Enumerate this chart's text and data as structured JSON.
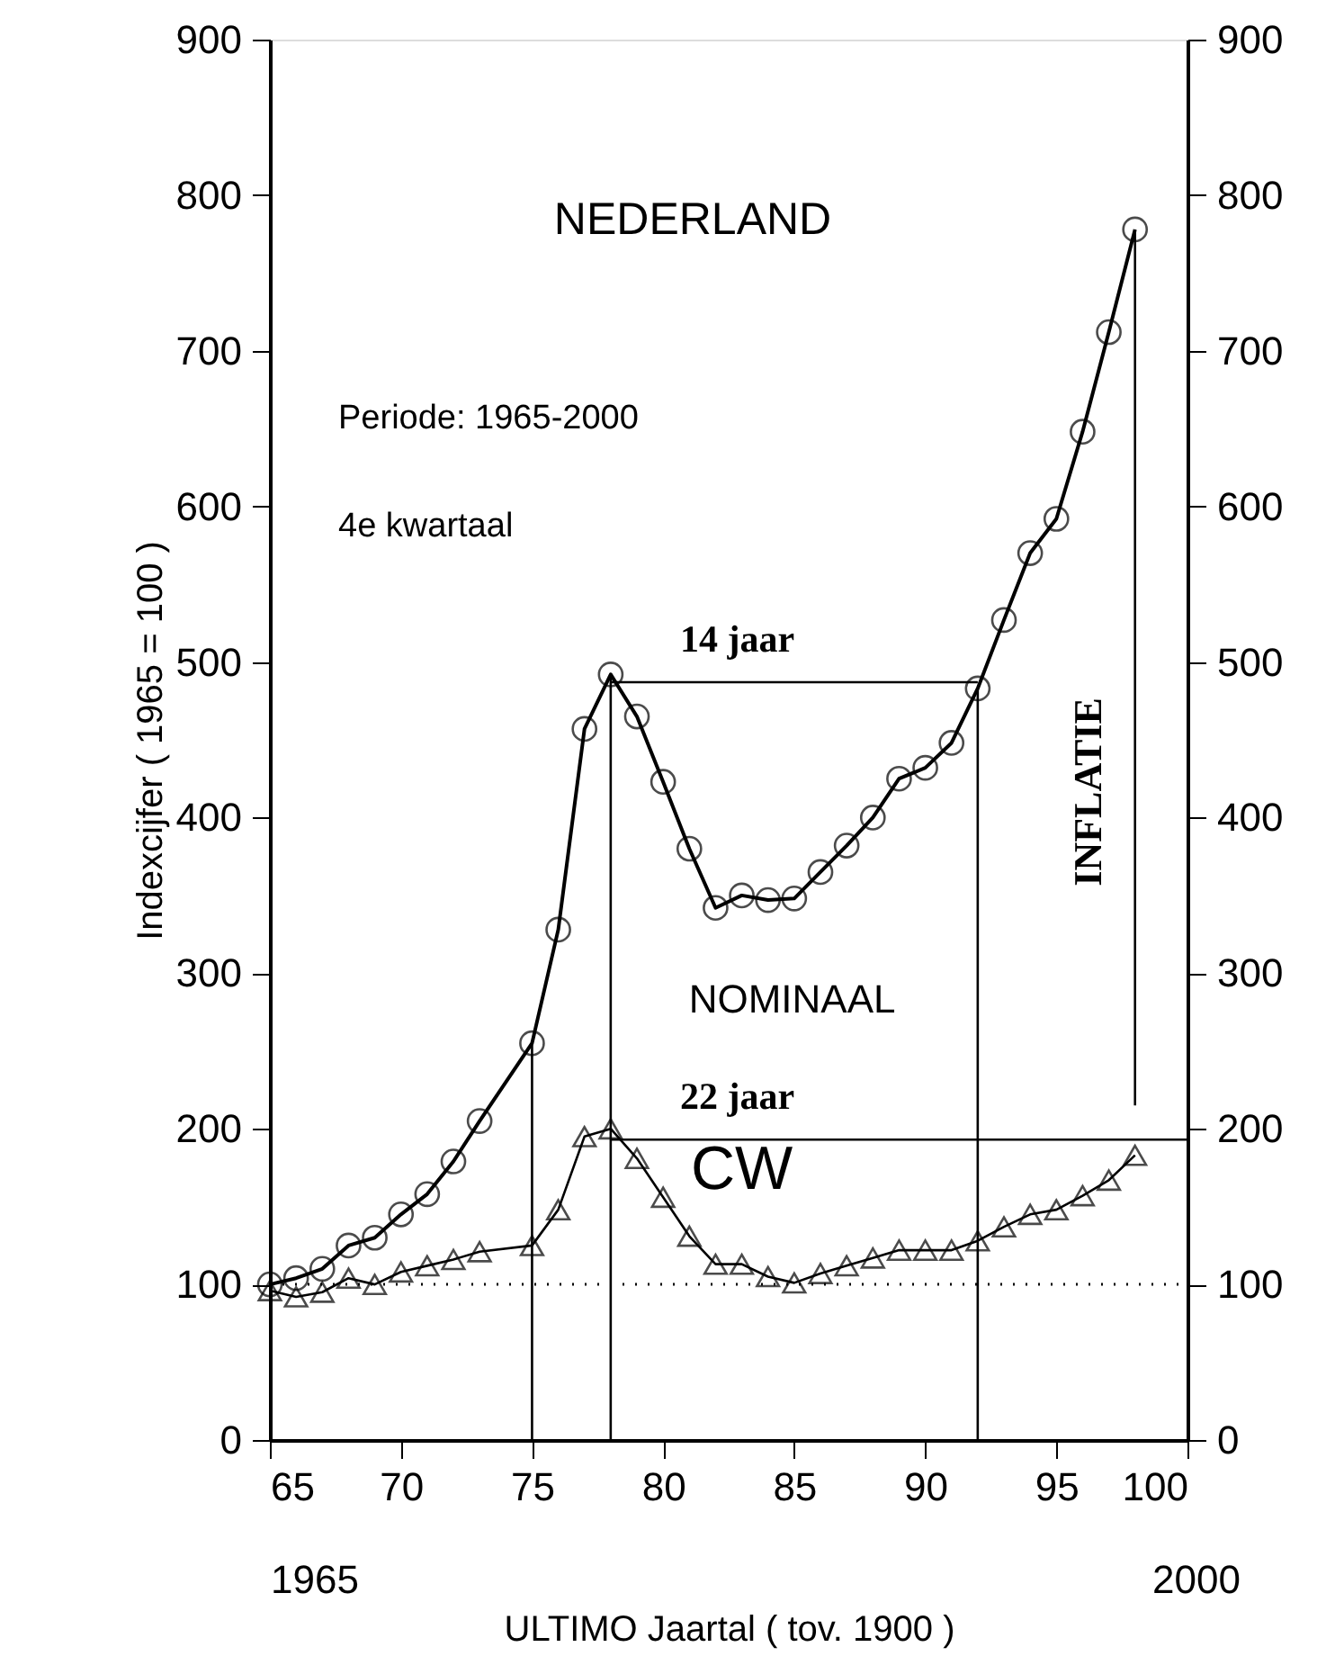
{
  "chart_data": {
    "type": "line",
    "title": "NEDERLAND",
    "xlabel": "ULTIMO Jaartal ( tov. 1900 )",
    "ylabel": "Indexcijfer ( 1965 = 100 )",
    "x": [
      65,
      66,
      67,
      68,
      69,
      70,
      71,
      72,
      73,
      75,
      76,
      77,
      78,
      79,
      80,
      81,
      82,
      83,
      84,
      85,
      86,
      87,
      88,
      89,
      90,
      91,
      92,
      93,
      94,
      95,
      96,
      97,
      98
    ],
    "series": [
      {
        "name": "NOMINAAL",
        "color": "#000000",
        "marker": "circle",
        "values": [
          100,
          104,
          110,
          125,
          130,
          145,
          158,
          179,
          205,
          255,
          328,
          457,
          492,
          465,
          423,
          380,
          342,
          350,
          347,
          348,
          365,
          382,
          400,
          425,
          432,
          448,
          483,
          527,
          570,
          592,
          648,
          712,
          778
        ]
      },
      {
        "name": "CW",
        "color": "#000000",
        "marker": "triangle",
        "values": [
          96,
          92,
          95,
          104,
          100,
          108,
          112,
          116,
          121,
          125,
          148,
          195,
          200,
          181,
          156,
          131,
          113,
          113,
          105,
          101,
          107,
          112,
          117,
          122,
          122,
          122,
          128,
          137,
          145,
          148,
          157,
          167,
          183
        ]
      },
      {
        "type": "line",
        "color": "#000000",
        "marker": "none",
        "x": [
          75,
          75
        ],
        "values": [
          0,
          255
        ]
      },
      {
        "type": "line",
        "color": "#000000",
        "marker": "none",
        "x": [
          78,
          78
        ],
        "values": [
          492,
          0
        ]
      },
      {
        "type": "line",
        "color": "#000000",
        "marker": "none",
        "x": [
          78,
          92
        ],
        "values": [
          487,
          487
        ]
      },
      {
        "type": "line",
        "color": "#000000",
        "marker": "none",
        "x": [
          92,
          92
        ],
        "values": [
          483,
          0
        ]
      },
      {
        "type": "line",
        "color": "#000000",
        "marker": "none",
        "x": [
          78,
          100
        ],
        "values": [
          193,
          193
        ]
      },
      {
        "type": "line",
        "color": "#000000",
        "marker": "none",
        "x": [
          98,
          98
        ],
        "values": [
          215,
          778
        ]
      }
    ],
    "xlim": [
      65,
      100
    ],
    "xticks": [
      65,
      70,
      75,
      80,
      85,
      90,
      95,
      100
    ],
    "ylim": [
      0,
      900
    ],
    "yticks": [
      0,
      100,
      200,
      300,
      400,
      500,
      600,
      700,
      800,
      900
    ],
    "y2lim": [
      0,
      900
    ],
    "y2ticks": [
      0,
      100,
      200,
      300,
      400,
      500,
      600,
      700,
      800,
      900
    ],
    "ref_lines": [
      {
        "axis": "y",
        "value": 100,
        "line_style": "dotted"
      }
    ],
    "annotations": [
      "Periode:   1965-2000",
      "4e  kwartaal",
      "14  jaar",
      "22  jaar",
      "INFLATIE",
      "1965",
      "2000"
    ],
    "grid": false,
    "legend": false,
    "line_style": "solid"
  }
}
